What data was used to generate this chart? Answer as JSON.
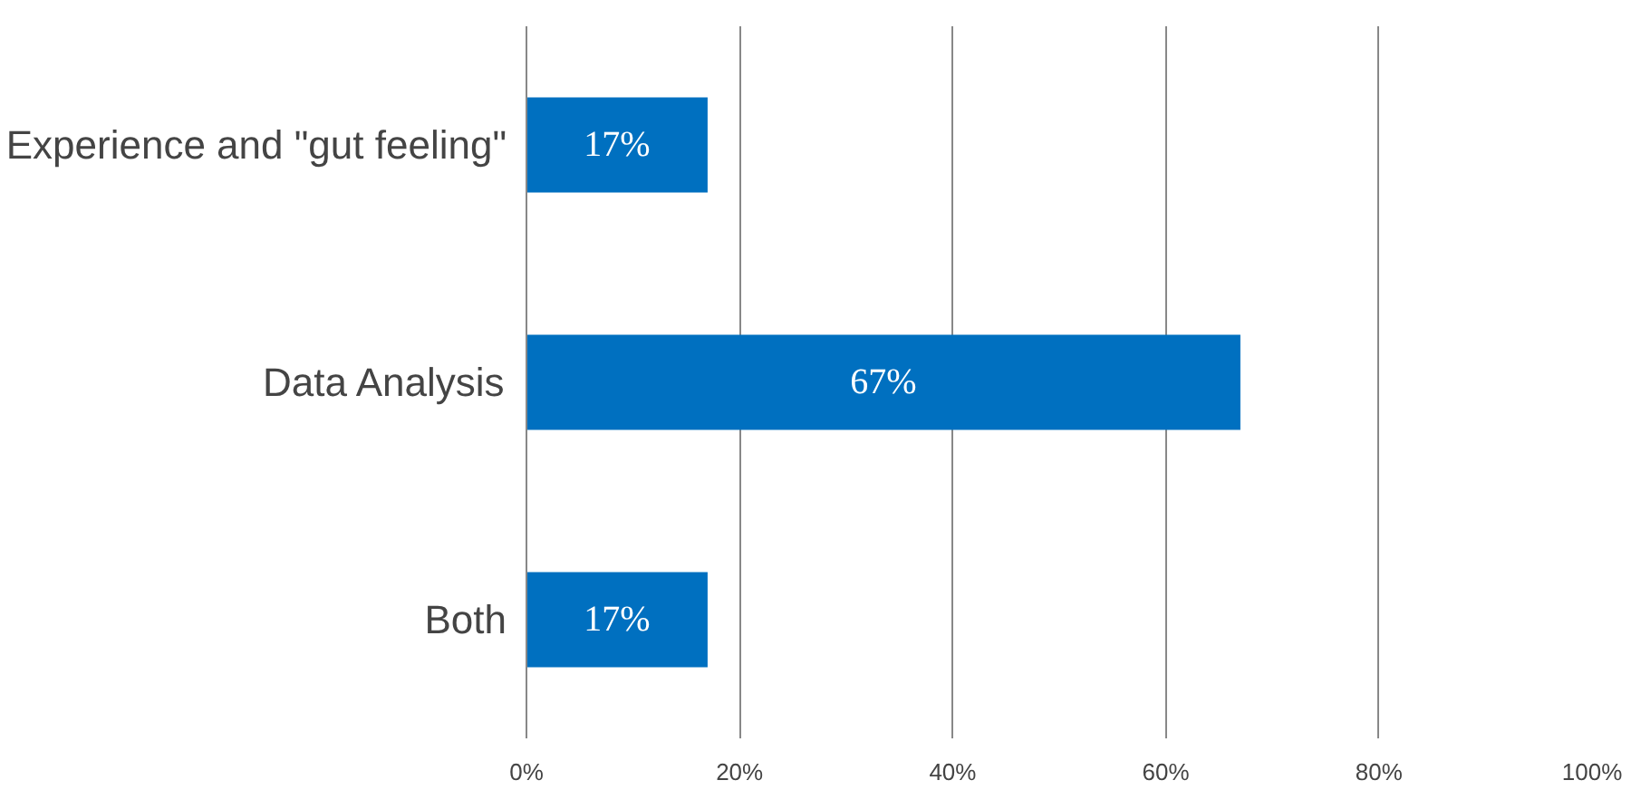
{
  "chart_data": {
    "type": "bar",
    "orientation": "horizontal",
    "categories": [
      "Experience and \"gut feeling\"",
      "Data Analysis",
      "Both"
    ],
    "values": [
      17,
      67,
      17
    ],
    "color": "#0070c0",
    "value_labels": [
      "17%",
      "67%",
      "17%"
    ],
    "xlim": [
      0,
      100
    ],
    "xticks": [
      {
        "value": 0,
        "label": "0%"
      },
      {
        "value": 20,
        "label": "20%"
      },
      {
        "value": 40,
        "label": "40%"
      },
      {
        "value": 60,
        "label": "60%"
      },
      {
        "value": 80,
        "label": "80%"
      },
      {
        "value": 100,
        "label": "100%"
      }
    ],
    "grid": "x"
  }
}
